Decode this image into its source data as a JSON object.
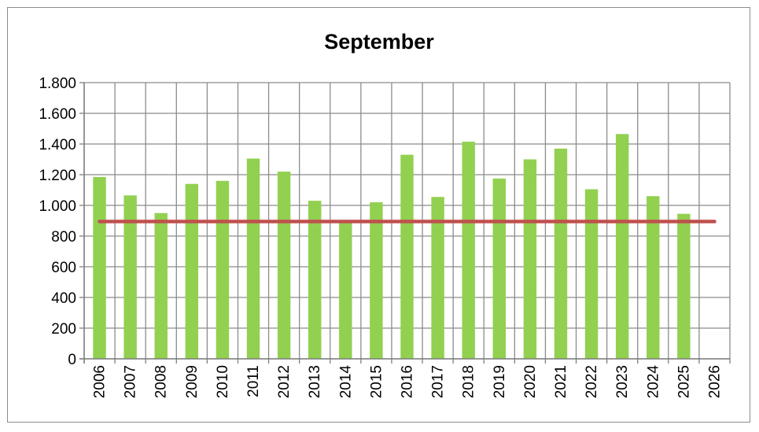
{
  "chart_data": {
    "type": "bar",
    "title": "September",
    "xlabel": "",
    "ylabel": "",
    "categories": [
      "2006",
      "2007",
      "2008",
      "2009",
      "2010",
      "2011",
      "2012",
      "2013",
      "2014",
      "2015",
      "2016",
      "2017",
      "2018",
      "2019",
      "2020",
      "2021",
      "2022",
      "2023",
      "2024",
      "2025",
      "2026"
    ],
    "series": [
      {
        "values": [
          1185,
          1065,
          950,
          1140,
          1160,
          1305,
          1220,
          1030,
          895,
          1020,
          1330,
          1055,
          1415,
          1175,
          1300,
          1370,
          1105,
          1465,
          1060,
          945,
          null
        ],
        "color": "#92d050"
      }
    ],
    "reference_line": {
      "value": 895,
      "color": "#c0504d"
    },
    "ylim": [
      0,
      1800
    ],
    "yticks": [
      {
        "value": 0,
        "label": "0"
      },
      {
        "value": 200,
        "label": "200"
      },
      {
        "value": 400,
        "label": "400"
      },
      {
        "value": 600,
        "label": "600"
      },
      {
        "value": 800,
        "label": "800"
      },
      {
        "value": 1000,
        "label": "1.000"
      },
      {
        "value": 1200,
        "label": "1.200"
      },
      {
        "value": 1400,
        "label": "1.400"
      },
      {
        "value": 1600,
        "label": "1.600"
      },
      {
        "value": 1800,
        "label": "1.800"
      }
    ],
    "grid": true,
    "legend": "none"
  }
}
